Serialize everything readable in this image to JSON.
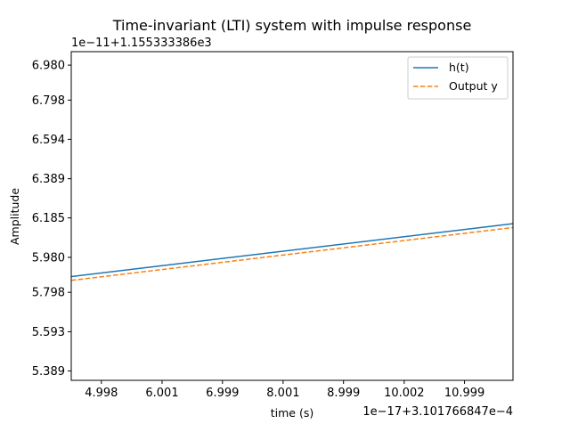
{
  "chart_data": {
    "type": "line",
    "title": "Time-invariant (LTI) system with impulse response",
    "xlabel": "time (s)",
    "ylabel": "Amplitude",
    "x_offset_label": "1e−17+3.101766847e−4",
    "y_offset_label": "1e−11+1.155333386e3",
    "xlim": [
      4.5,
      11.8
    ],
    "ylim": [
      5.34,
      7.05
    ],
    "x_ticks": [
      4.998,
      6.001,
      6.999,
      8.001,
      8.999,
      10.002,
      10.999
    ],
    "x_tick_labels": [
      "4.998",
      "6.001",
      "6.999",
      "8.001",
      "8.999",
      "10.002",
      "10.999"
    ],
    "y_ticks": [
      5.389,
      5.593,
      5.798,
      5.98,
      6.185,
      6.389,
      6.594,
      6.798,
      6.98
    ],
    "y_tick_labels": [
      "5.389",
      "5.593",
      "5.798",
      "5.980",
      "6.185",
      "6.389",
      "6.594",
      "6.798",
      "6.980"
    ],
    "grid": false,
    "legend_position": "upper right",
    "series": [
      {
        "name": "h(t)",
        "color": "#1f77b4",
        "style": "solid",
        "x": [
          4.5,
          11.8
        ],
        "y": [
          5.88,
          6.155
        ]
      },
      {
        "name": "Output y",
        "color": "#ff7f0e",
        "style": "dashed",
        "x": [
          4.5,
          11.8
        ],
        "y": [
          5.86,
          6.135
        ]
      }
    ]
  }
}
